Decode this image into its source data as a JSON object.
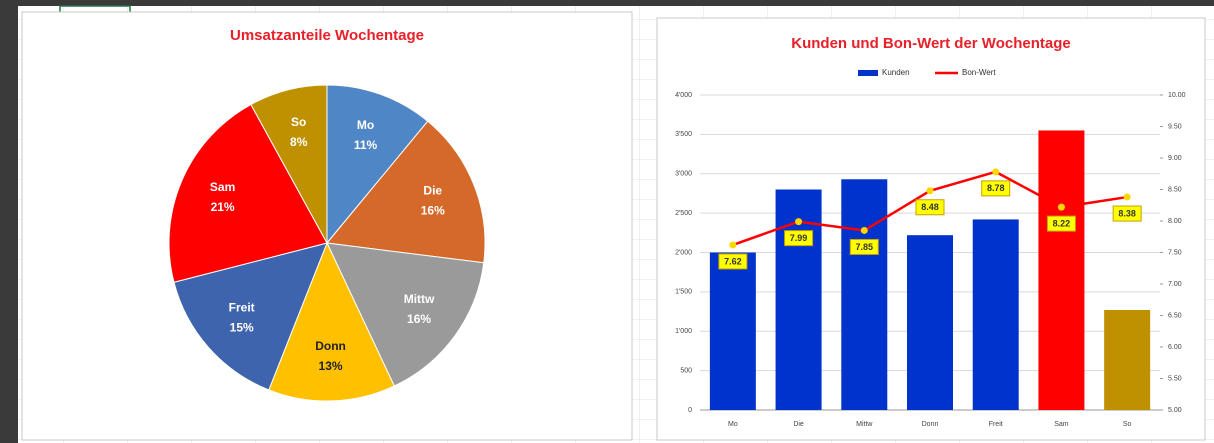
{
  "chart_data": [
    {
      "type": "pie",
      "title": "Umsatzanteile Wochentage",
      "categories": [
        "Mo",
        "Die",
        "Mittw",
        "Donn",
        "Freit",
        "Sam",
        "So"
      ],
      "values": [
        11,
        16,
        16,
        13,
        15,
        21,
        8
      ],
      "value_labels": [
        "11%",
        "16%",
        "16%",
        "13%",
        "15%",
        "21%",
        "8%"
      ],
      "colors": [
        "#4f86c6",
        "#d4692a",
        "#9a9a9a",
        "#ffc000",
        "#3f64ae",
        "#ff0000",
        "#bf9000"
      ]
    },
    {
      "type": "bar_line",
      "title": "Kunden und Bon-Wert der Wochentage",
      "categories": [
        "Mo",
        "Die",
        "Mittw",
        "Donn",
        "Freit",
        "Sam",
        "So"
      ],
      "series": [
        {
          "name": "Kunden",
          "color": "#0033cc",
          "colors": [
            "#0033cc",
            "#0033cc",
            "#0033cc",
            "#0033cc",
            "#0033cc",
            "#ff0000",
            "#bf9000"
          ],
          "values": [
            2000,
            2800,
            2930,
            2220,
            2420,
            3550,
            1270
          ]
        },
        {
          "name": "Bon-Wert",
          "color": "#ff0000",
          "axis": "y2",
          "values": [
            7.62,
            7.99,
            7.85,
            8.48,
            8.78,
            8.22,
            8.38
          ]
        }
      ],
      "ylim": [
        0,
        4000
      ],
      "yticks": [
        0,
        500,
        {
          "value": 1000,
          "label": "1'000"
        },
        {
          "value": 1500,
          "label": "1'500"
        },
        {
          "value": 2000,
          "label": "2'000"
        },
        {
          "value": 2500,
          "label": "2'500"
        },
        {
          "value": 3000,
          "label": "3'000"
        },
        {
          "value": 3500,
          "label": "3'500"
        },
        {
          "value": 4000,
          "label": "4'000"
        }
      ],
      "y2lim": [
        5,
        10
      ],
      "y2ticks": [
        {
          "value": 5,
          "label": "5.00"
        },
        {
          "value": 5.5,
          "label": "5.50"
        },
        {
          "value": 6,
          "label": "6.00"
        },
        {
          "value": 6.5,
          "label": "6.50"
        },
        {
          "value": 7,
          "label": "7.00"
        },
        {
          "value": 7.5,
          "label": "7.50"
        },
        {
          "value": 8,
          "label": "8.00"
        },
        {
          "value": 8.5,
          "label": "8.50"
        },
        {
          "value": 9,
          "label": "9.00"
        },
        {
          "value": 9.5,
          "label": "9.50"
        },
        {
          "value": 10,
          "label": "10.00"
        }
      ],
      "grid": true,
      "legend": "top"
    }
  ]
}
